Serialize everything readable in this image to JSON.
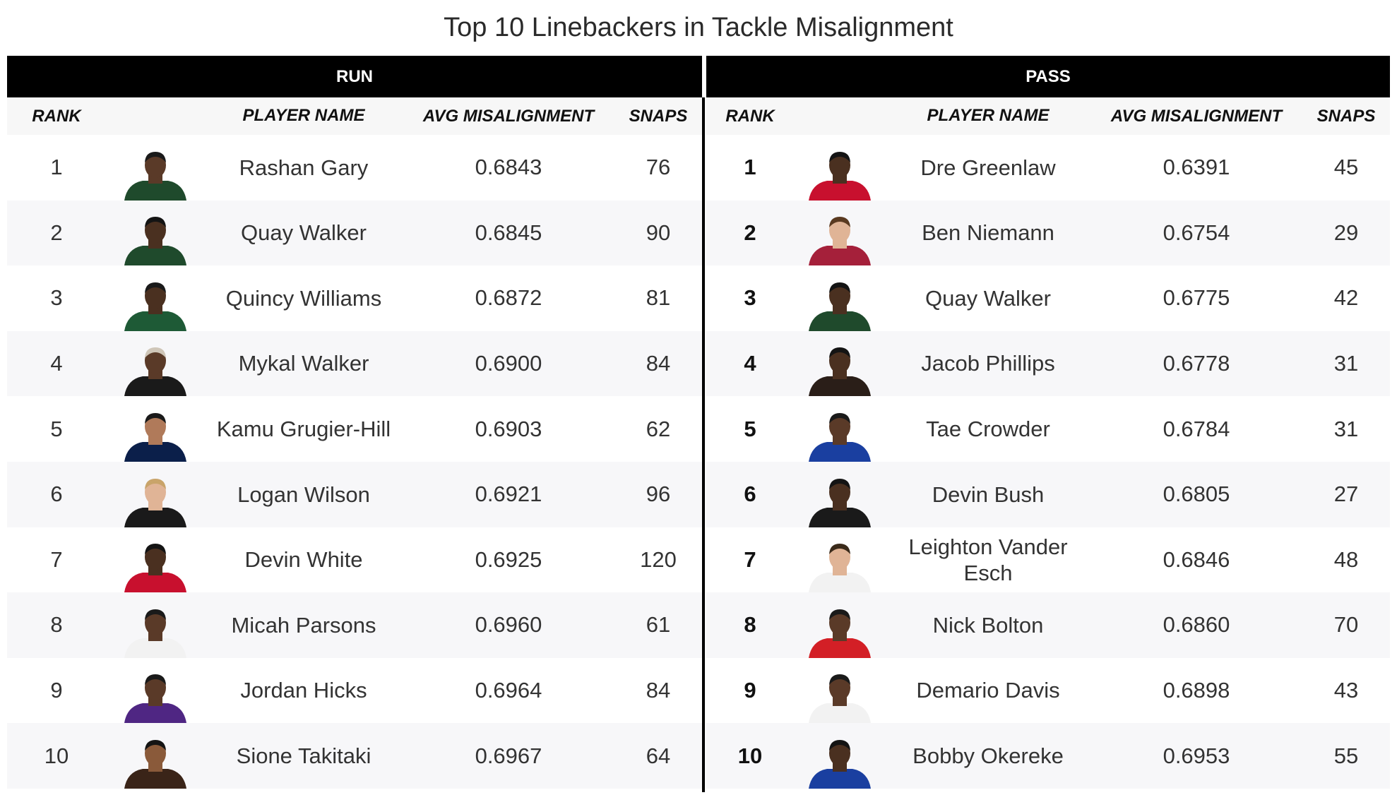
{
  "title": "Top 10 Linebackers in Tackle Misalignment",
  "column_headers": {
    "rank": "RANK",
    "player_name": "PLAYER NAME",
    "avg_misalignment": "AVG MISALIGNMENT",
    "snaps": "SNAPS"
  },
  "run": {
    "label": "RUN",
    "rows": [
      {
        "rank": "1",
        "name": "Rashan Gary",
        "avg": "0.6843",
        "snaps": "76",
        "jersey_color": "#1f4a2c",
        "skin": "#5a3a28",
        "hair": "#1a1a1a"
      },
      {
        "rank": "2",
        "name": "Quay Walker",
        "avg": "0.6845",
        "snaps": "90",
        "jersey_color": "#1f4a2c",
        "skin": "#4a3020",
        "hair": "#141414"
      },
      {
        "rank": "3",
        "name": "Quincy Williams",
        "avg": "0.6872",
        "snaps": "81",
        "jersey_color": "#1e5a36",
        "skin": "#4a3020",
        "hair": "#1a1a1a"
      },
      {
        "rank": "4",
        "name": "Mykal Walker",
        "avg": "0.6900",
        "snaps": "84",
        "jersey_color": "#1a1a1a",
        "skin": "#5a3a28",
        "hair": "#cfc6b8"
      },
      {
        "rank": "5",
        "name": "Kamu Grugier-Hill",
        "avg": "0.6903",
        "snaps": "62",
        "jersey_color": "#0b1f4a",
        "skin": "#b07a5a",
        "hair": "#1a1a1a"
      },
      {
        "rank": "6",
        "name": "Logan Wilson",
        "avg": "0.6921",
        "snaps": "96",
        "jersey_color": "#1a1a1a",
        "skin": "#e0b496",
        "hair": "#c9a46a"
      },
      {
        "rank": "7",
        "name": "Devin White",
        "avg": "0.6925",
        "snaps": "120",
        "jersey_color": "#c8102e",
        "skin": "#4a3020",
        "hair": "#141414"
      },
      {
        "rank": "8",
        "name": "Micah Parsons",
        "avg": "0.6960",
        "snaps": "61",
        "jersey_color": "#f2f2f2",
        "skin": "#5a3a28",
        "hair": "#1a1a1a"
      },
      {
        "rank": "9",
        "name": "Jordan Hicks",
        "avg": "0.6964",
        "snaps": "84",
        "jersey_color": "#4f2683",
        "skin": "#5a3a28",
        "hair": "#1a1a1a"
      },
      {
        "rank": "10",
        "name": "Sione Takitaki",
        "avg": "0.6967",
        "snaps": "64",
        "jersey_color": "#3a2418",
        "skin": "#8a5a3a",
        "hair": "#141414"
      }
    ]
  },
  "pass": {
    "label": "PASS",
    "rows": [
      {
        "rank": "1",
        "name": "Dre Greenlaw",
        "avg": "0.6391",
        "snaps": "45",
        "jersey_color": "#c8102e",
        "skin": "#4a3020",
        "hair": "#141414"
      },
      {
        "rank": "2",
        "name": "Ben Niemann",
        "avg": "0.6754",
        "snaps": "29",
        "jersey_color": "#a5203a",
        "skin": "#e0b496",
        "hair": "#5a3a20"
      },
      {
        "rank": "3",
        "name": "Quay Walker",
        "avg": "0.6775",
        "snaps": "42",
        "jersey_color": "#1f4a2c",
        "skin": "#4a3020",
        "hair": "#141414"
      },
      {
        "rank": "4",
        "name": "Jacob Phillips",
        "avg": "0.6778",
        "snaps": "31",
        "jersey_color": "#2a1e18",
        "skin": "#4a3020",
        "hair": "#141414"
      },
      {
        "rank": "5",
        "name": "Tae Crowder",
        "avg": "0.6784",
        "snaps": "31",
        "jersey_color": "#1a3fa0",
        "skin": "#5a3a28",
        "hair": "#1a1a1a"
      },
      {
        "rank": "6",
        "name": "Devin Bush",
        "avg": "0.6805",
        "snaps": "27",
        "jersey_color": "#1a1a1a",
        "skin": "#4a3020",
        "hair": "#141414"
      },
      {
        "rank": "7",
        "name": "Leighton Vander Esch",
        "avg": "0.6846",
        "snaps": "48",
        "jersey_color": "#f2f2f2",
        "skin": "#e0b496",
        "hair": "#3a2a1a"
      },
      {
        "rank": "8",
        "name": "Nick Bolton",
        "avg": "0.6860",
        "snaps": "70",
        "jersey_color": "#d31f26",
        "skin": "#5a3a28",
        "hair": "#1a1a1a"
      },
      {
        "rank": "9",
        "name": "Demario Davis",
        "avg": "0.6898",
        "snaps": "43",
        "jersey_color": "#f2f2f2",
        "skin": "#5a3a28",
        "hair": "#1a1a1a"
      },
      {
        "rank": "10",
        "name": "Bobby Okereke",
        "avg": "0.6953",
        "snaps": "55",
        "jersey_color": "#1a3fa0",
        "skin": "#4a3020",
        "hair": "#141414"
      }
    ]
  }
}
